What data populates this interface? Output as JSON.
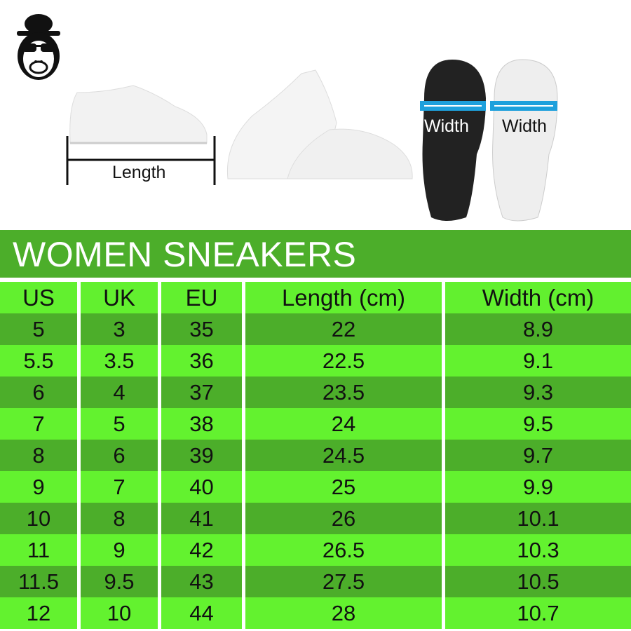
{
  "images": {
    "logo": "monkey-with-hat-and-sunglasses-logo",
    "length_label": "Length",
    "width_label_dark": "Width",
    "width_label_white": "Width"
  },
  "title": "WOMEN SNEAKERS",
  "colors": {
    "title_bar": "#4cae2a",
    "row_dark": "#4cae2a",
    "row_light": "#63f22f",
    "width_arrow": "#1ea0dc"
  },
  "table": {
    "headers": [
      "US",
      "UK",
      "EU",
      "Length (cm)",
      "Width (cm)"
    ],
    "rows": [
      [
        "5",
        "3",
        "35",
        "22",
        "8.9"
      ],
      [
        "5.5",
        "3.5",
        "36",
        "22.5",
        "9.1"
      ],
      [
        "6",
        "4",
        "37",
        "23.5",
        "9.3"
      ],
      [
        "7",
        "5",
        "38",
        "24",
        "9.5"
      ],
      [
        "8",
        "6",
        "39",
        "24.5",
        "9.7"
      ],
      [
        "9",
        "7",
        "40",
        "25",
        "9.9"
      ],
      [
        "10",
        "8",
        "41",
        "26",
        "10.1"
      ],
      [
        "11",
        "9",
        "42",
        "26.5",
        "10.3"
      ],
      [
        "11.5",
        "9.5",
        "43",
        "27.5",
        "10.5"
      ],
      [
        "12",
        "10",
        "44",
        "28",
        "10.7"
      ]
    ]
  }
}
